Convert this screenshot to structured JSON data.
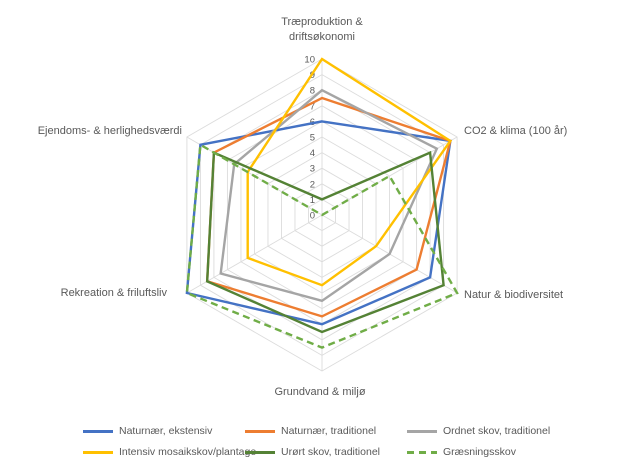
{
  "chart_data": {
    "type": "radar",
    "title": "",
    "axes": [
      "Træproduktion & driftsøkonomi",
      "CO2 & klima (100 år)",
      "Natur & biodiversitet",
      "Grundvand & miljø",
      "Rekreation & friluftsliv",
      "Ejendoms- & herlighedsværdi"
    ],
    "ticks": [
      0,
      1,
      2,
      3,
      4,
      5,
      6,
      7,
      8,
      9,
      10
    ],
    "ylim": [
      0,
      10
    ],
    "grid": true,
    "legend_position": "bottom",
    "grid_color": "#DCDCDC",
    "tick_color": "#595959",
    "label_color": "#595959",
    "series": [
      {
        "name": "Naturnær, ekstensiv",
        "color": "#4472C4",
        "dash": false,
        "values": [
          6,
          9.5,
          8,
          7,
          10,
          9
        ]
      },
      {
        "name": "Naturnær, traditionel",
        "color": "#ED7D31",
        "dash": false,
        "values": [
          7.5,
          9.5,
          7,
          6.5,
          8.5,
          8
        ]
      },
      {
        "name": "Ordnet skov, traditionel",
        "color": "#A5A5A5",
        "dash": false,
        "values": [
          8,
          8.5,
          5,
          5.5,
          7.5,
          6.5
        ]
      },
      {
        "name": "Intensiv mosaikskov/plantage",
        "color": "#FFC000",
        "dash": false,
        "values": [
          10,
          9.5,
          4,
          4.5,
          5.5,
          5.5
        ]
      },
      {
        "name": "Urørt skov, traditionel",
        "color": "#548235",
        "dash": false,
        "values": [
          1,
          8,
          9,
          7.5,
          8.5,
          8
        ]
      },
      {
        "name": "Græsningsskov",
        "color": "#70AD47",
        "dash": true,
        "values": [
          0,
          5,
          10,
          8.5,
          10,
          9
        ]
      }
    ]
  }
}
